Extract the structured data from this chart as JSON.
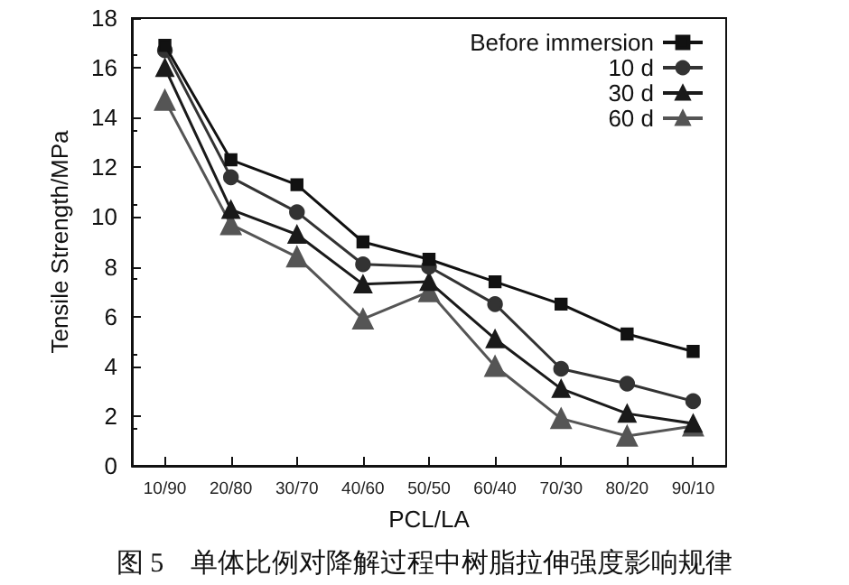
{
  "chart_data": {
    "type": "line",
    "xlabel": "PCL/LA",
    "ylabel": "Tensile Strength/MPa",
    "categories": [
      "10/90",
      "20/80",
      "30/70",
      "40/60",
      "50/50",
      "60/40",
      "70/30",
      "80/20",
      "90/10"
    ],
    "series": [
      {
        "name": "Before immersion",
        "color": "#111111",
        "marker": "square",
        "values": [
          16.9,
          12.3,
          11.3,
          9.0,
          8.3,
          7.4,
          6.5,
          5.3,
          4.6
        ]
      },
      {
        "name": "10 d",
        "color": "#333333",
        "marker": "circle",
        "values": [
          16.7,
          11.6,
          10.2,
          8.1,
          8.0,
          6.5,
          3.9,
          3.3,
          2.6
        ]
      },
      {
        "name": "30 d",
        "color": "#1a1a1a",
        "marker": "triangle",
        "values": [
          16.0,
          10.3,
          9.3,
          7.3,
          7.4,
          5.1,
          3.1,
          2.1,
          1.7
        ]
      },
      {
        "name": "60 d",
        "color": "#555555",
        "marker": "triangle",
        "values": [
          14.7,
          9.7,
          8.4,
          5.9,
          7.0,
          4.0,
          1.9,
          1.2,
          1.6
        ]
      }
    ],
    "ylim": [
      0,
      18
    ],
    "yticks": [
      0,
      2,
      4,
      6,
      8,
      10,
      12,
      14,
      16,
      18
    ],
    "grid": false,
    "legend": "top right",
    "line_style": "solid",
    "annotations": [
      "图 5　单体比例对降解过程中树脂拉伸强度影响规律"
    ]
  }
}
